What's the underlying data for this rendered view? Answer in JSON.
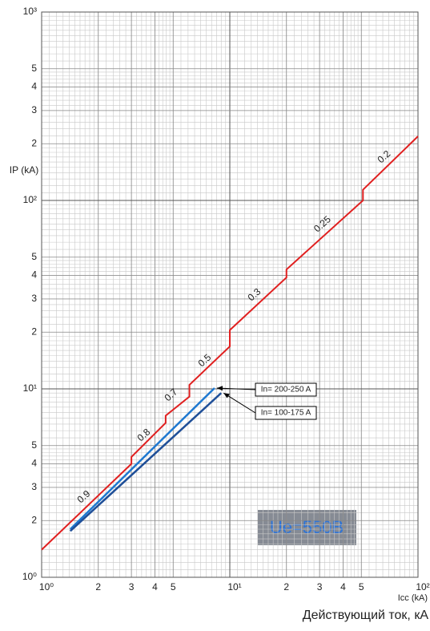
{
  "chart_data": {
    "type": "line",
    "log_x": true,
    "log_y": true,
    "grid": true,
    "y_label": "IP (kA)",
    "x_label": "Icc (kA)",
    "x_caption": "Действующий ток, кА",
    "note": "Ue=550B",
    "xlim": [
      1,
      100
    ],
    "ylim": [
      1,
      1000
    ],
    "xticks": [
      {
        "value": 1,
        "label": "10⁰"
      },
      2,
      3,
      4,
      5,
      {
        "value": 10,
        "label": "10¹"
      },
      2,
      3,
      4,
      5,
      {
        "value": 100,
        "label": "10²"
      }
    ],
    "yticks": [
      {
        "value": 1,
        "label": "10⁰"
      },
      2,
      3,
      4,
      5,
      {
        "value": 10,
        "label": "10¹"
      },
      2,
      3,
      4,
      5,
      {
        "value": 100,
        "label": "10²"
      },
      2,
      3,
      4,
      5,
      {
        "value": 1000,
        "label": "10³"
      }
    ],
    "limit_curve": {
      "color": "#e02020",
      "x": [
        1,
        3,
        3,
        4.56,
        4.56,
        6.1,
        6.1,
        10,
        10,
        20,
        20,
        51,
        51,
        100
      ],
      "values": [
        1.4,
        4.0,
        4.35,
        6.6,
        7.2,
        9.1,
        10.5,
        16.8,
        20.5,
        39,
        43,
        100,
        114,
        219
      ],
      "labels": [
        "0.9",
        "0.8",
        "0.7",
        "0.5",
        "0.3",
        "0.25",
        "0.2"
      ]
    },
    "series": [
      {
        "name": "In= 200-250 A",
        "color": "#1e78d0",
        "x": [
          1.42,
          8.3
        ],
        "values": [
          1.8,
          10.1
        ]
      },
      {
        "name": "In= 100-175 A",
        "color": "#1f4f98",
        "x": [
          1.42,
          9.0
        ],
        "values": [
          1.76,
          9.5
        ]
      }
    ]
  }
}
